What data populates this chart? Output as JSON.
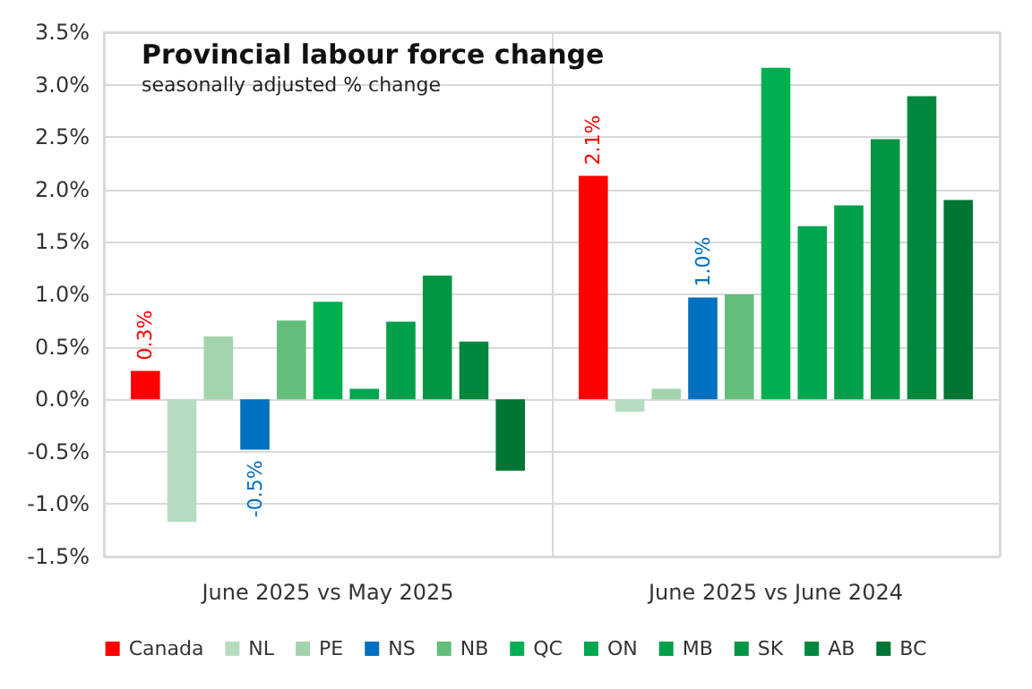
{
  "chart_data": {
    "type": "bar",
    "title": "Provincial labour force change",
    "subtitle": "seasonally adjusted % change",
    "categories": [
      "June 2025 vs May 2025",
      "June 2025 vs June 2024"
    ],
    "series": [
      {
        "name": "Canada",
        "color": "#ff0000",
        "values": [
          0.27,
          2.13
        ],
        "value_labels": [
          "0.3%",
          "2.1%"
        ]
      },
      {
        "name": "NL",
        "color": "#b5dcbf",
        "values": [
          -1.17,
          -0.12
        ]
      },
      {
        "name": "PE",
        "color": "#a3d3ad",
        "values": [
          0.6,
          0.1
        ]
      },
      {
        "name": "NS",
        "color": "#0070c0",
        "values": [
          -0.48,
          0.97
        ],
        "value_labels": [
          "-0.5%",
          "1.0%"
        ]
      },
      {
        "name": "NB",
        "color": "#63be7b",
        "values": [
          0.75,
          1.0
        ]
      },
      {
        "name": "QC",
        "color": "#00b050",
        "values": [
          0.93,
          3.16
        ]
      },
      {
        "name": "ON",
        "color": "#00a650",
        "values": [
          0.1,
          1.65
        ]
      },
      {
        "name": "MB",
        "color": "#00a04a",
        "values": [
          0.74,
          1.85
        ]
      },
      {
        "name": "SK",
        "color": "#009644",
        "values": [
          1.18,
          2.48
        ]
      },
      {
        "name": "AB",
        "color": "#00883e",
        "values": [
          0.55,
          2.89
        ]
      },
      {
        "name": "BC",
        "color": "#007635",
        "values": [
          -0.68,
          1.9
        ]
      }
    ],
    "ylim": [
      -1.5,
      3.5
    ],
    "yticks": [
      {
        "value": -1.5,
        "label": "-1.5%"
      },
      {
        "value": -1.0,
        "label": "-1.0%"
      },
      {
        "value": -0.5,
        "label": "-0.5%"
      },
      {
        "value": 0,
        "label": "0.0%"
      },
      {
        "value": 0.5,
        "label": "0.5%"
      },
      {
        "value": 1.0,
        "label": "1.0%"
      },
      {
        "value": 1.5,
        "label": "1.5%"
      },
      {
        "value": 2.0,
        "label": "2.0%"
      },
      {
        "value": 2.5,
        "label": "2.5%"
      },
      {
        "value": 3.0,
        "label": "3.0%"
      },
      {
        "value": 3.5,
        "label": "3.5%"
      }
    ],
    "grid": true,
    "legend": "bottom"
  }
}
